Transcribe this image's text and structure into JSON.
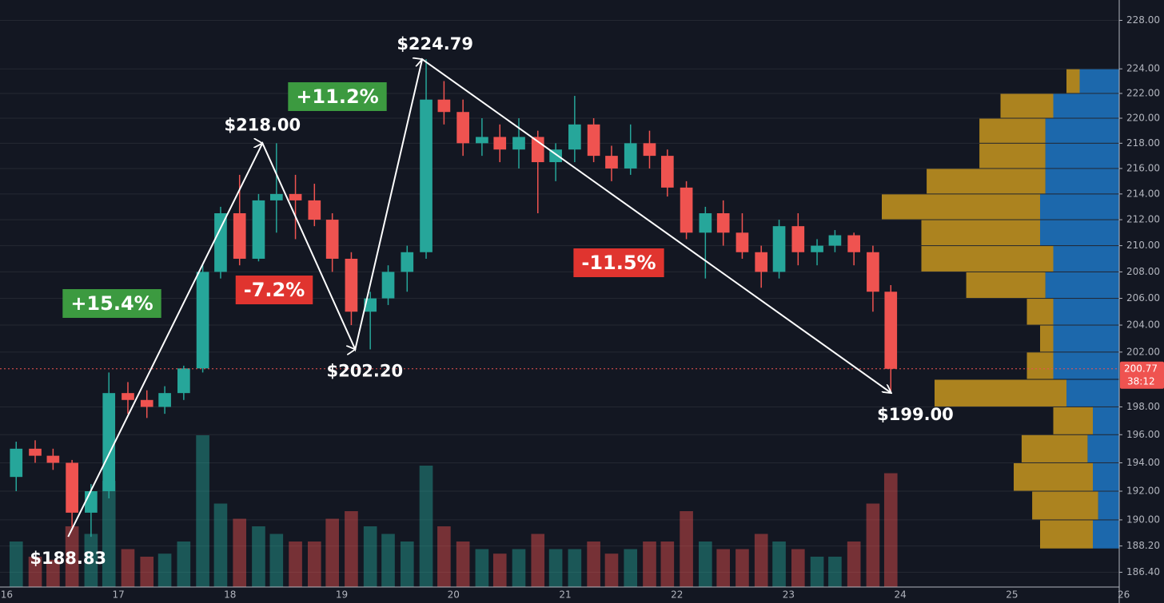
{
  "chart_data": {
    "type": "candlestick",
    "log_scale": true,
    "grid": true,
    "up_color": "#26a69a",
    "down_color": "#ef5350",
    "xlim": [
      15.94,
      25.96
    ],
    "xticks": [
      16,
      17,
      18,
      19,
      20,
      21,
      22,
      23,
      24,
      25,
      26
    ],
    "ylim": [
      185.4,
      229.7
    ],
    "yticks": [
      {
        "value": 228,
        "label": "228.00"
      },
      {
        "value": 224,
        "label": "224.00"
      },
      {
        "value": 222,
        "label": "222.00"
      },
      {
        "value": 220,
        "label": "220.00"
      },
      {
        "value": 218,
        "label": "218.00"
      },
      {
        "value": 216,
        "label": "216.00"
      },
      {
        "value": 214,
        "label": "214.00"
      },
      {
        "value": 212,
        "label": "212.00"
      },
      {
        "value": 210,
        "label": "210.00"
      },
      {
        "value": 208,
        "label": "208.00"
      },
      {
        "value": 206,
        "label": "206.00"
      },
      {
        "value": 204,
        "label": "204.00"
      },
      {
        "value": 202,
        "label": "202.00"
      },
      {
        "value": 198,
        "label": "198.00"
      },
      {
        "value": 196,
        "label": "196.00"
      },
      {
        "value": 194,
        "label": "194.00"
      },
      {
        "value": 192,
        "label": "192.00"
      },
      {
        "value": 190,
        "label": "190.00"
      },
      {
        "value": 188.2,
        "label": "188.20"
      },
      {
        "value": 186.4,
        "label": "186.40"
      }
    ],
    "x": [
      16.0,
      16.17,
      16.33,
      16.5,
      16.67,
      16.83,
      17.0,
      17.17,
      17.33,
      17.5,
      17.67,
      17.83,
      18.0,
      18.17,
      18.33,
      18.5,
      18.67,
      18.83,
      19.0,
      19.17,
      19.33,
      19.5,
      19.67,
      19.83,
      20.0,
      20.17,
      20.33,
      20.5,
      20.67,
      20.83,
      21.0,
      21.17,
      21.33,
      21.5,
      21.67,
      21.83,
      22.0,
      22.17,
      22.33,
      22.5,
      22.67,
      22.83,
      23.0,
      23.17,
      23.33,
      23.5,
      23.67,
      23.83
    ],
    "open": [
      193,
      195,
      194.5,
      194,
      190.5,
      192,
      199,
      198.5,
      198,
      199,
      200.8,
      208,
      212.5,
      209,
      213.5,
      214,
      213.5,
      212,
      209,
      205,
      206,
      208,
      209.5,
      221.5,
      220.5,
      218,
      218.5,
      217.5,
      218.5,
      216.5,
      217.5,
      219.5,
      217,
      216,
      218,
      217,
      214.5,
      211,
      212.5,
      211,
      209.5,
      208,
      211.5,
      209.5,
      210,
      210.8,
      209.5,
      206.5
    ],
    "high": [
      195.5,
      195.6,
      195,
      194.2,
      192.5,
      200.5,
      199.8,
      199.2,
      199.5,
      201,
      208.5,
      213,
      215.5,
      214,
      218,
      215.5,
      214.8,
      212.5,
      209.5,
      206.5,
      208.5,
      210,
      224.79,
      223,
      221.5,
      220,
      219.5,
      220,
      219,
      218,
      221.8,
      220,
      217.8,
      219.5,
      219,
      217.5,
      215,
      213,
      213.5,
      212.5,
      210,
      212,
      212.5,
      210.5,
      211.2,
      211,
      210,
      207
    ],
    "low": [
      192,
      194,
      193.5,
      189.5,
      188.83,
      191.5,
      197.5,
      197.2,
      197.5,
      198.5,
      200.5,
      207.5,
      208.5,
      208.8,
      211,
      210.5,
      211.5,
      208,
      204,
      202.2,
      205.5,
      206.5,
      209,
      219.5,
      217,
      217,
      216.5,
      216,
      212.5,
      215,
      216.5,
      216.5,
      215,
      215.5,
      216,
      213.8,
      210.5,
      207.5,
      210,
      209,
      206.8,
      207.5,
      208.5,
      208.5,
      209.5,
      208.5,
      205,
      199
    ],
    "close": [
      195,
      194.5,
      194,
      190.5,
      192,
      199,
      198.5,
      198,
      199,
      200.8,
      208,
      212.5,
      209,
      213.5,
      214,
      213.5,
      212,
      209,
      205,
      206,
      208,
      209.5,
      221.5,
      220.5,
      218,
      218.5,
      217.5,
      218.5,
      216.5,
      217.5,
      219.5,
      217,
      216,
      218,
      217,
      214.5,
      211,
      212.5,
      211,
      209.5,
      208,
      211.5,
      209.5,
      210,
      210.8,
      209.5,
      206.5,
      200.77
    ],
    "volume": [
      30,
      20,
      18,
      40,
      35,
      70,
      25,
      20,
      22,
      30,
      100,
      55,
      45,
      40,
      35,
      30,
      30,
      45,
      50,
      40,
      35,
      30,
      80,
      40,
      30,
      25,
      22,
      25,
      35,
      25,
      25,
      30,
      22,
      25,
      30,
      30,
      50,
      30,
      25,
      25,
      35,
      30,
      25,
      20,
      20,
      30,
      55,
      75
    ],
    "volume_profile": {
      "bins": [
        188,
        190,
        192,
        194,
        196,
        198,
        200,
        202,
        204,
        206,
        208,
        210,
        212,
        214,
        216,
        218,
        220,
        222,
        224
      ],
      "series": [
        {
          "color": "#1f77c4",
          "values": [
            10,
            8,
            10,
            12,
            10,
            20,
            25,
            25,
            25,
            28,
            25,
            30,
            30,
            28,
            28,
            28,
            25,
            15
          ]
        },
        {
          "color": "#c8961e",
          "values": [
            20,
            25,
            30,
            25,
            15,
            50,
            10,
            5,
            10,
            30,
            50,
            45,
            60,
            45,
            25,
            25,
            20,
            5
          ]
        }
      ]
    },
    "swing": {
      "color": "#ffffff",
      "x": [
        16.55,
        18.29,
        19.12,
        19.72,
        23.92
      ],
      "y": [
        188.83,
        218.0,
        202.2,
        224.79,
        199.0
      ],
      "labels": [
        "$188.83",
        "$218.00",
        "$202.20",
        "$224.79",
        "$199.00"
      ]
    },
    "moves": [
      {
        "label": "+15.4%",
        "color": "#3c9a40"
      },
      {
        "label": "-7.2%",
        "color": "#e0342f"
      },
      {
        "label": "+11.2%",
        "color": "#3c9a40"
      },
      {
        "label": "-11.5%",
        "color": "#e0342f"
      }
    ],
    "last_price": 200.77,
    "countdown": "38:12"
  }
}
